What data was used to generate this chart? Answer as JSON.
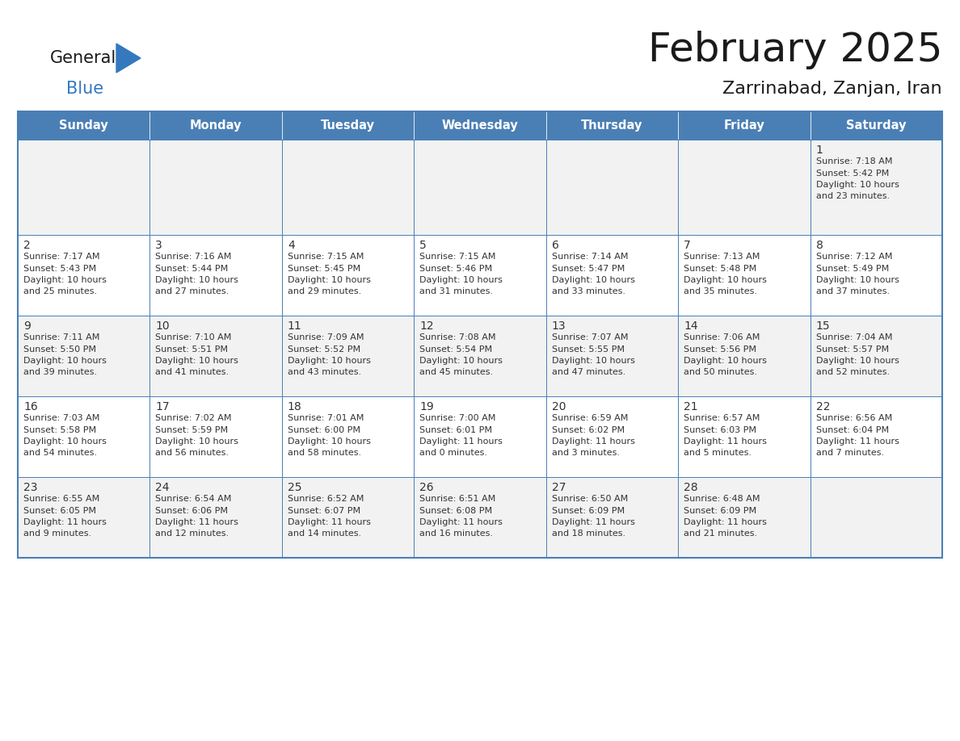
{
  "title": "February 2025",
  "subtitle": "Zarrinabad, Zanjan, Iran",
  "header_bg": "#4a7fb5",
  "header_text_color": "#FFFFFF",
  "weekdays": [
    "Sunday",
    "Monday",
    "Tuesday",
    "Wednesday",
    "Thursday",
    "Friday",
    "Saturday"
  ],
  "cell_bg_row0": "#f2f2f2",
  "cell_bg_row1": "#ffffff",
  "cell_bg_row2": "#f2f2f2",
  "cell_bg_row3": "#ffffff",
  "cell_bg_row4": "#f2f2f2",
  "cell_border_color": "#4a7fb5",
  "title_color": "#1a1a1a",
  "subtitle_color": "#1a1a1a",
  "day_number_color": "#333333",
  "text_color": "#333333",
  "logo_general_color": "#1a1a1a",
  "logo_blue_color": "#3478BE",
  "logo_triangle_color": "#3478BE",
  "calendar_data": [
    [
      null,
      null,
      null,
      null,
      null,
      null,
      {
        "day": 1,
        "sunrise": "7:18 AM",
        "sunset": "5:42 PM",
        "daylight_hours": 10,
        "daylight_minutes": 23
      }
    ],
    [
      {
        "day": 2,
        "sunrise": "7:17 AM",
        "sunset": "5:43 PM",
        "daylight_hours": 10,
        "daylight_minutes": 25
      },
      {
        "day": 3,
        "sunrise": "7:16 AM",
        "sunset": "5:44 PM",
        "daylight_hours": 10,
        "daylight_minutes": 27
      },
      {
        "day": 4,
        "sunrise": "7:15 AM",
        "sunset": "5:45 PM",
        "daylight_hours": 10,
        "daylight_minutes": 29
      },
      {
        "day": 5,
        "sunrise": "7:15 AM",
        "sunset": "5:46 PM",
        "daylight_hours": 10,
        "daylight_minutes": 31
      },
      {
        "day": 6,
        "sunrise": "7:14 AM",
        "sunset": "5:47 PM",
        "daylight_hours": 10,
        "daylight_minutes": 33
      },
      {
        "day": 7,
        "sunrise": "7:13 AM",
        "sunset": "5:48 PM",
        "daylight_hours": 10,
        "daylight_minutes": 35
      },
      {
        "day": 8,
        "sunrise": "7:12 AM",
        "sunset": "5:49 PM",
        "daylight_hours": 10,
        "daylight_minutes": 37
      }
    ],
    [
      {
        "day": 9,
        "sunrise": "7:11 AM",
        "sunset": "5:50 PM",
        "daylight_hours": 10,
        "daylight_minutes": 39
      },
      {
        "day": 10,
        "sunrise": "7:10 AM",
        "sunset": "5:51 PM",
        "daylight_hours": 10,
        "daylight_minutes": 41
      },
      {
        "day": 11,
        "sunrise": "7:09 AM",
        "sunset": "5:52 PM",
        "daylight_hours": 10,
        "daylight_minutes": 43
      },
      {
        "day": 12,
        "sunrise": "7:08 AM",
        "sunset": "5:54 PM",
        "daylight_hours": 10,
        "daylight_minutes": 45
      },
      {
        "day": 13,
        "sunrise": "7:07 AM",
        "sunset": "5:55 PM",
        "daylight_hours": 10,
        "daylight_minutes": 47
      },
      {
        "day": 14,
        "sunrise": "7:06 AM",
        "sunset": "5:56 PM",
        "daylight_hours": 10,
        "daylight_minutes": 50
      },
      {
        "day": 15,
        "sunrise": "7:04 AM",
        "sunset": "5:57 PM",
        "daylight_hours": 10,
        "daylight_minutes": 52
      }
    ],
    [
      {
        "day": 16,
        "sunrise": "7:03 AM",
        "sunset": "5:58 PM",
        "daylight_hours": 10,
        "daylight_minutes": 54
      },
      {
        "day": 17,
        "sunrise": "7:02 AM",
        "sunset": "5:59 PM",
        "daylight_hours": 10,
        "daylight_minutes": 56
      },
      {
        "day": 18,
        "sunrise": "7:01 AM",
        "sunset": "6:00 PM",
        "daylight_hours": 10,
        "daylight_minutes": 58
      },
      {
        "day": 19,
        "sunrise": "7:00 AM",
        "sunset": "6:01 PM",
        "daylight_hours": 11,
        "daylight_minutes": 0
      },
      {
        "day": 20,
        "sunrise": "6:59 AM",
        "sunset": "6:02 PM",
        "daylight_hours": 11,
        "daylight_minutes": 3
      },
      {
        "day": 21,
        "sunrise": "6:57 AM",
        "sunset": "6:03 PM",
        "daylight_hours": 11,
        "daylight_minutes": 5
      },
      {
        "day": 22,
        "sunrise": "6:56 AM",
        "sunset": "6:04 PM",
        "daylight_hours": 11,
        "daylight_minutes": 7
      }
    ],
    [
      {
        "day": 23,
        "sunrise": "6:55 AM",
        "sunset": "6:05 PM",
        "daylight_hours": 11,
        "daylight_minutes": 9
      },
      {
        "day": 24,
        "sunrise": "6:54 AM",
        "sunset": "6:06 PM",
        "daylight_hours": 11,
        "daylight_minutes": 12
      },
      {
        "day": 25,
        "sunrise": "6:52 AM",
        "sunset": "6:07 PM",
        "daylight_hours": 11,
        "daylight_minutes": 14
      },
      {
        "day": 26,
        "sunrise": "6:51 AM",
        "sunset": "6:08 PM",
        "daylight_hours": 11,
        "daylight_minutes": 16
      },
      {
        "day": 27,
        "sunrise": "6:50 AM",
        "sunset": "6:09 PM",
        "daylight_hours": 11,
        "daylight_minutes": 18
      },
      {
        "day": 28,
        "sunrise": "6:48 AM",
        "sunset": "6:09 PM",
        "daylight_hours": 11,
        "daylight_minutes": 21
      },
      null
    ]
  ]
}
